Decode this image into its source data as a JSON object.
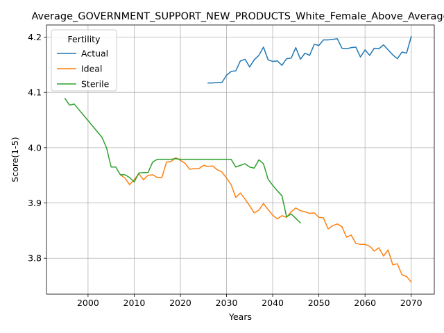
{
  "chart_data": {
    "type": "line",
    "title": "Average_GOVERNMENT_SUPPORT_NEW_PRODUCTS_White_Female_Above_Average",
    "xlabel": "Years",
    "ylabel": "Score(1-5)",
    "xlim": [
      1991,
      2075
    ],
    "ylim": [
      3.735,
      4.222
    ],
    "xticks": [
      2000,
      2010,
      2020,
      2030,
      2040,
      2050,
      2060,
      2070
    ],
    "yticks": [
      3.8,
      3.9,
      4.0,
      4.1,
      4.2
    ],
    "xtick_labels": [
      "2000",
      "2010",
      "2020",
      "2030",
      "2040",
      "2050",
      "2060",
      "2070"
    ],
    "ytick_labels": [
      "3.8",
      "3.9",
      "4.0",
      "4.1",
      "4.2"
    ],
    "grid": true,
    "legend": {
      "title": "Fertility",
      "placement": "upper-left"
    },
    "series": [
      {
        "name": "Actual",
        "color": "#1f77b4",
        "x": [
          2026,
          2027,
          2028,
          2029,
          2030,
          2031,
          2032,
          2033,
          2034,
          2035,
          2036,
          2037,
          2038,
          2039,
          2040,
          2041,
          2042,
          2043,
          2044,
          2045,
          2046,
          2047,
          2048,
          2049,
          2050,
          2051,
          2052,
          2053,
          2054,
          2055,
          2056,
          2057,
          2058,
          2059,
          2060,
          2061,
          2062,
          2063,
          2064,
          2065,
          2066,
          2067,
          2068,
          2069,
          2070
        ],
        "y": [
          4.117,
          4.117,
          4.118,
          4.118,
          4.131,
          4.138,
          4.139,
          4.157,
          4.16,
          4.146,
          4.159,
          4.167,
          4.182,
          4.159,
          4.156,
          4.157,
          4.149,
          4.161,
          4.162,
          4.181,
          4.16,
          4.171,
          4.167,
          4.187,
          4.185,
          4.195,
          4.195,
          4.196,
          4.197,
          4.18,
          4.179,
          4.181,
          4.182,
          4.164,
          4.177,
          4.167,
          4.18,
          4.179,
          4.186,
          4.177,
          4.168,
          4.161,
          4.173,
          4.171,
          4.201
        ]
      },
      {
        "name": "Ideal",
        "color": "#ff7f0e",
        "x": [
          2007,
          2008,
          2009,
          2010,
          2011,
          2012,
          2013,
          2014,
          2015,
          2016,
          2017,
          2018,
          2019,
          2020,
          2021,
          2022,
          2023,
          2024,
          2025,
          2026,
          2027,
          2028,
          2029,
          2030,
          2031,
          2032,
          2033,
          2034,
          2035,
          2036,
          2037,
          2038,
          2039,
          2040,
          2041,
          2042,
          2043,
          2044,
          2045,
          2046,
          2047,
          2048,
          2049,
          2050,
          2051,
          2052,
          2053,
          2054,
          2055,
          2056,
          2057,
          2058,
          2059,
          2060,
          2061,
          2062,
          2063,
          2064,
          2065,
          2066,
          2067,
          2068,
          2069,
          2070
        ],
        "y": [
          3.951,
          3.945,
          3.933,
          3.942,
          3.953,
          3.942,
          3.95,
          3.951,
          3.946,
          3.946,
          3.974,
          3.975,
          3.982,
          3.977,
          3.972,
          3.961,
          3.962,
          3.962,
          3.968,
          3.966,
          3.967,
          3.96,
          3.956,
          3.945,
          3.933,
          3.91,
          3.918,
          3.907,
          3.895,
          3.882,
          3.887,
          3.899,
          3.888,
          3.878,
          3.871,
          3.877,
          3.874,
          3.884,
          3.891,
          3.886,
          3.884,
          3.881,
          3.882,
          3.874,
          3.873,
          3.853,
          3.859,
          3.862,
          3.857,
          3.838,
          3.842,
          3.827,
          3.825,
          3.825,
          3.822,
          3.813,
          3.819,
          3.804,
          3.815,
          3.788,
          3.79,
          3.77,
          3.767,
          3.757
        ]
      },
      {
        "name": "Sterile",
        "color": "#2ca02c",
        "x": [
          1995,
          1996,
          1997,
          2003,
          2004,
          2005,
          2006,
          2007,
          2008,
          2009,
          2010,
          2011,
          2012,
          2013,
          2014,
          2015,
          2016,
          2017,
          2018,
          2019,
          2020,
          2021,
          2022,
          2023,
          2024,
          2025,
          2026,
          2027,
          2028,
          2029,
          2030,
          2031,
          2032,
          2033,
          2034,
          2035,
          2036,
          2037,
          2038,
          2039,
          2040,
          2041,
          2042,
          2043,
          2044,
          2045,
          2046
        ],
        "y": [
          4.089,
          4.077,
          4.079,
          4.019,
          4.0,
          3.965,
          3.965,
          3.951,
          3.951,
          3.946,
          3.938,
          3.954,
          3.955,
          3.955,
          3.974,
          3.979,
          3.979,
          3.979,
          3.979,
          3.98,
          3.979,
          3.979,
          3.979,
          3.979,
          3.979,
          3.979,
          3.979,
          3.979,
          3.979,
          3.979,
          3.979,
          3.979,
          3.965,
          3.968,
          3.971,
          3.965,
          3.963,
          3.978,
          3.971,
          3.943,
          3.932,
          3.922,
          3.913,
          3.875,
          3.88,
          3.872,
          3.864
        ]
      }
    ]
  }
}
